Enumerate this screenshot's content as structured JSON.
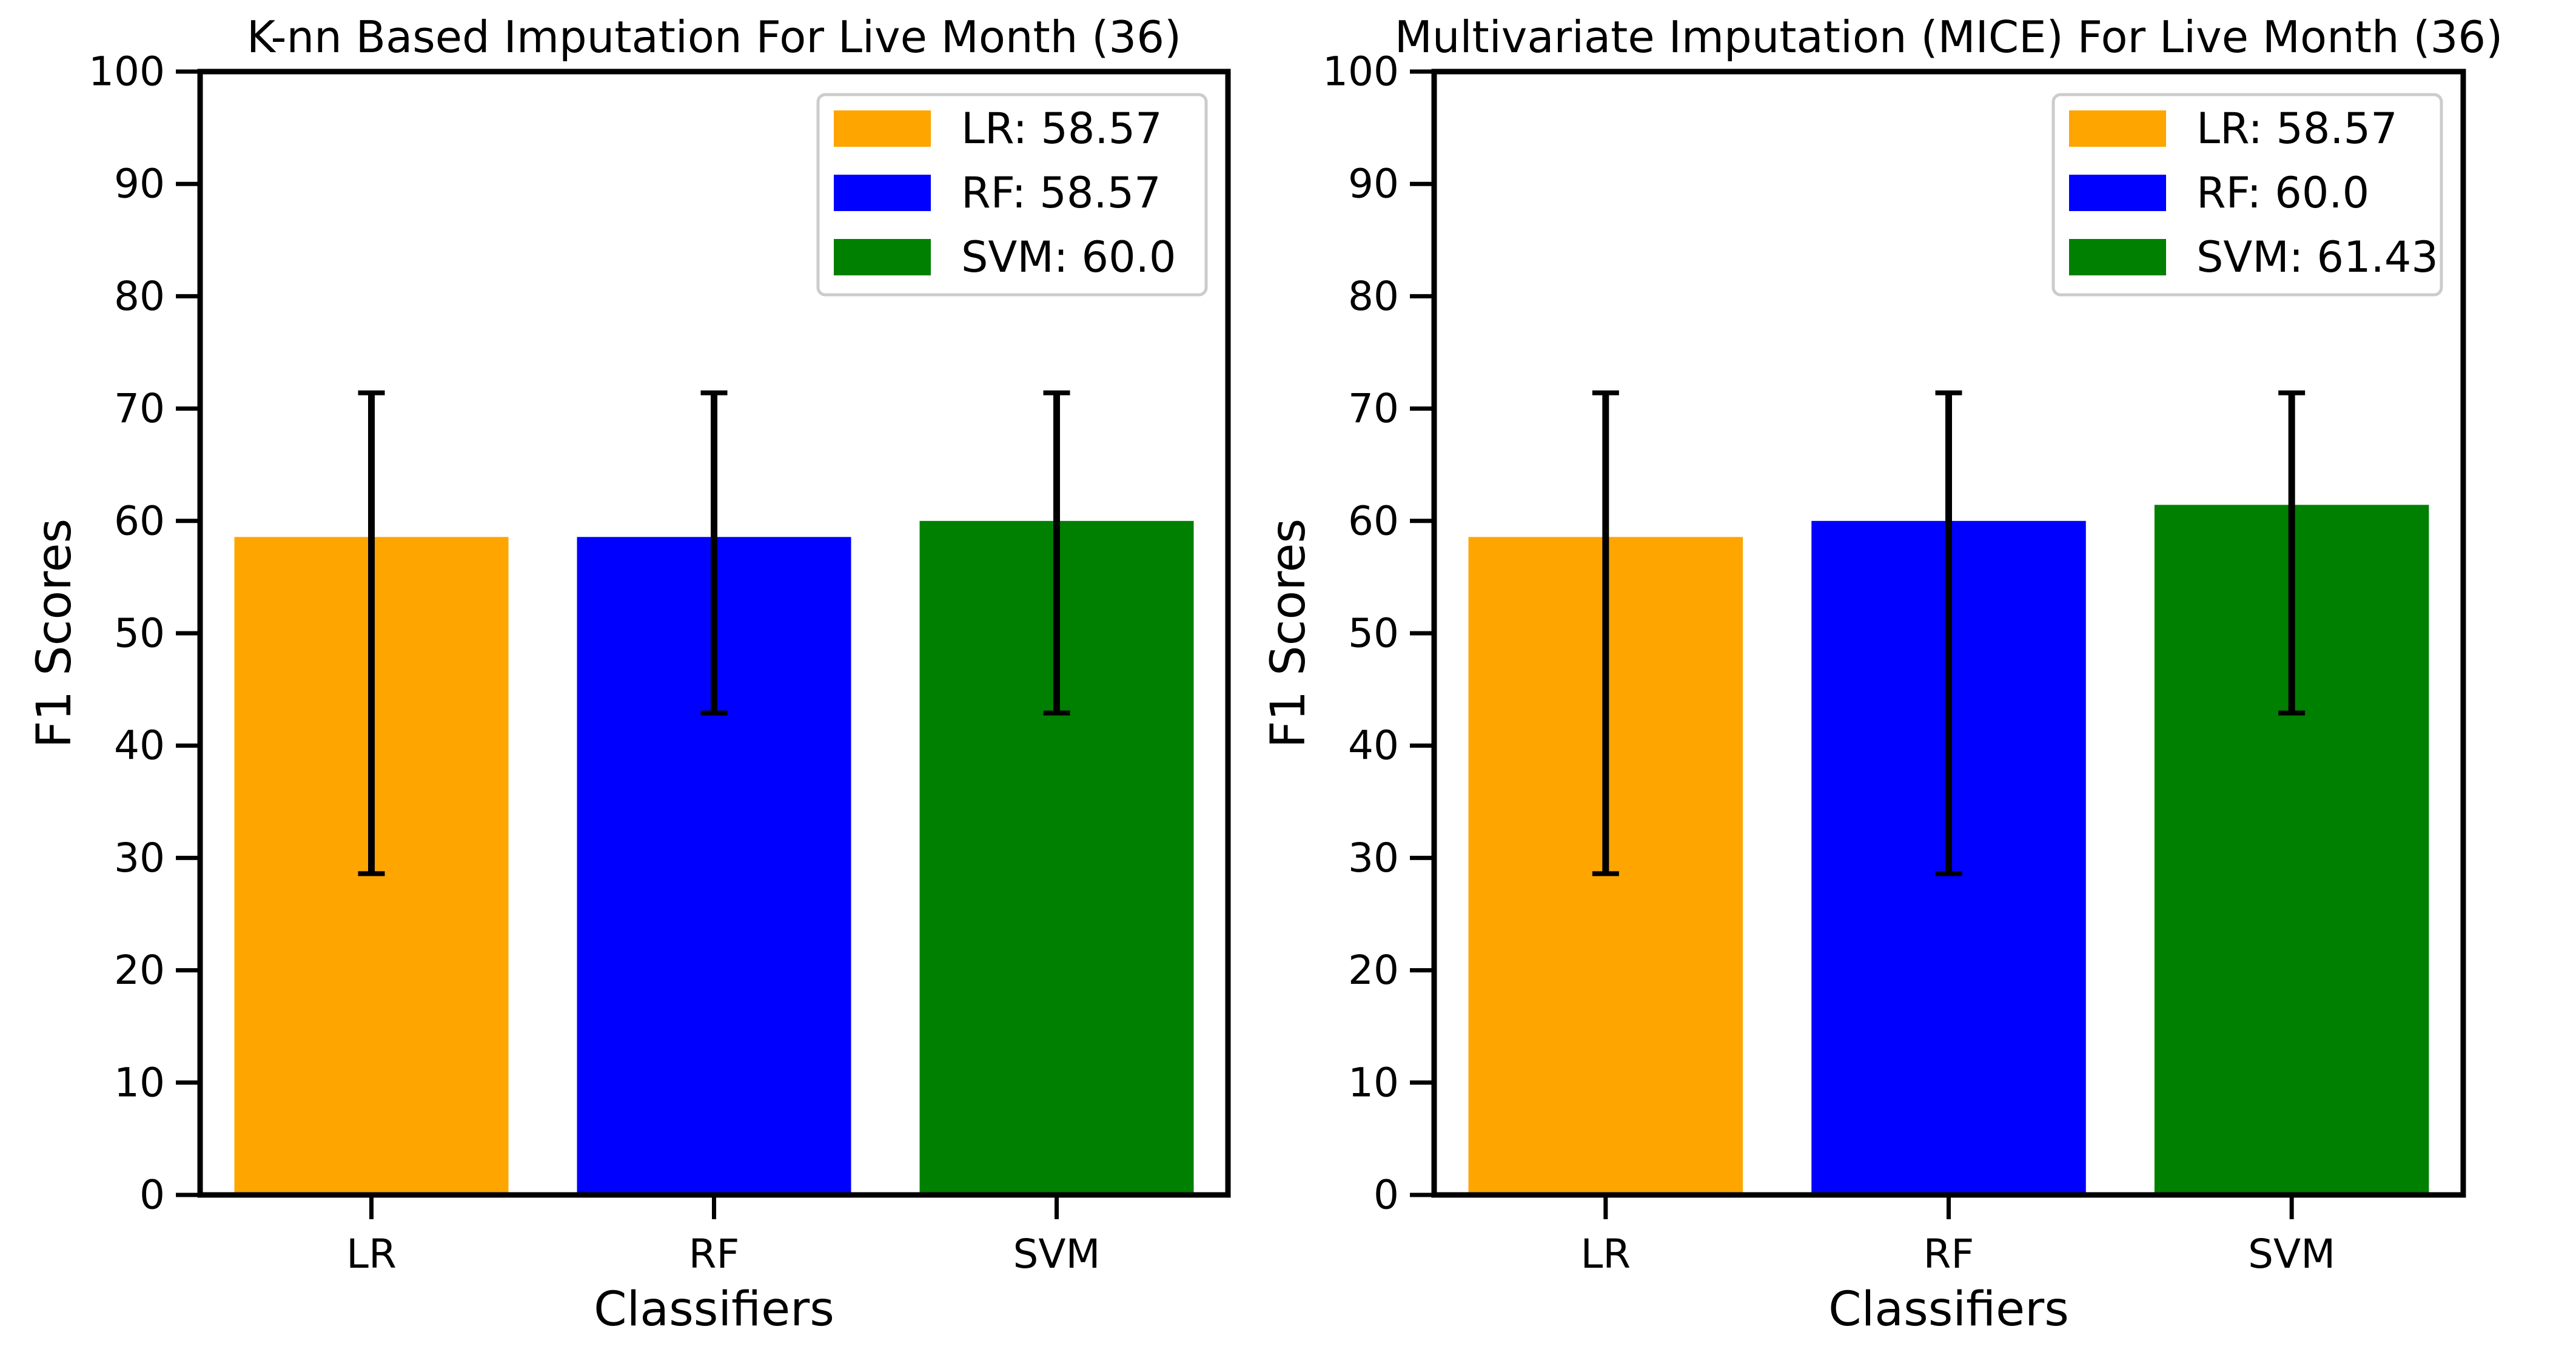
{
  "chart_data": [
    {
      "type": "bar",
      "title": "K-nn Based Imputation For Live Month (36)",
      "xlabel": "Classifiers",
      "ylabel": "F1 Scores",
      "categories": [
        "LR",
        "RF",
        "SVM"
      ],
      "values": [
        58.57,
        58.57,
        60.0
      ],
      "error_bars": [
        [
          28.6,
          71.4
        ],
        [
          42.9,
          71.4
        ],
        [
          42.9,
          71.4
        ]
      ],
      "colors": [
        "#ffa500",
        "#0000ff",
        "#008000"
      ],
      "ylim": [
        0,
        100
      ],
      "yticks": [
        0,
        10,
        20,
        30,
        40,
        50,
        60,
        70,
        80,
        90,
        100
      ],
      "grid": false,
      "legend_position": "top-right",
      "legend": [
        "LR: 58.57",
        "RF: 58.57",
        "SVM: 60.0"
      ]
    },
    {
      "type": "bar",
      "title": "Multivariate Imputation (MICE) For Live Month (36)",
      "xlabel": "Classifiers",
      "ylabel": "F1 Scores",
      "categories": [
        "LR",
        "RF",
        "SVM"
      ],
      "values": [
        58.57,
        60.0,
        61.43
      ],
      "error_bars": [
        [
          28.6,
          71.4
        ],
        [
          28.6,
          71.4
        ],
        [
          42.9,
          71.4
        ]
      ],
      "colors": [
        "#ffa500",
        "#0000ff",
        "#008000"
      ],
      "ylim": [
        0,
        100
      ],
      "yticks": [
        0,
        10,
        20,
        30,
        40,
        50,
        60,
        70,
        80,
        90,
        100
      ],
      "grid": false,
      "legend_position": "top-right",
      "legend": [
        "LR: 58.57",
        "RF: 60.0",
        "SVM: 61.43"
      ]
    }
  ]
}
